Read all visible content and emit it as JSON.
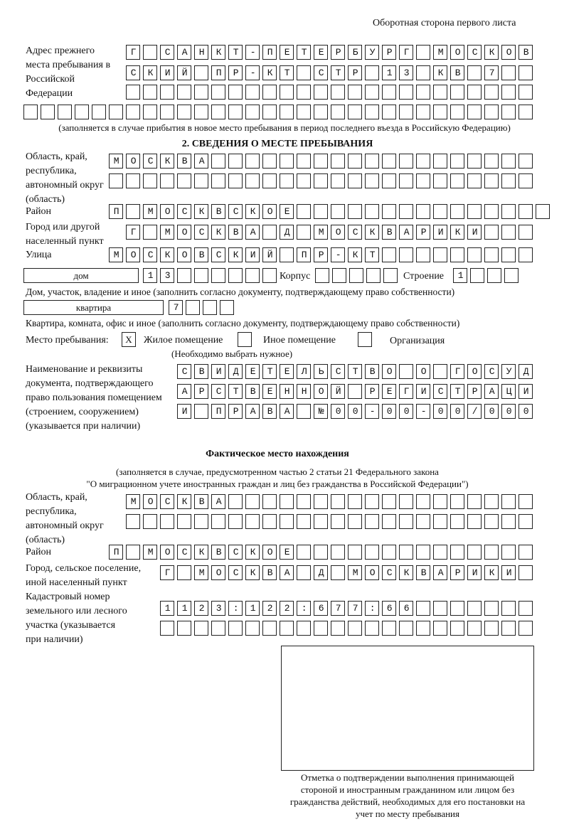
{
  "header": "Оборотная сторона первого листа",
  "prev_address": {
    "label": "Адрес прежнего места пребывания в Российской Федерации",
    "rows": [
      "Г САНКТ-ПЕТЕРБУРГ МОСКОВ",
      "СКИЙ ПР-КТ СТР 13 КВ 7  ",
      "                        ",
      "                              "
    ],
    "note": "(заполняется в случае прибытия в новое место пребывания в период последнего въезда в Российскую Федерацию)"
  },
  "section2": {
    "title": "2. СВЕДЕНИЯ О МЕСТЕ ПРЕБЫВАНИЯ",
    "region_label": "Область, край, республика, автономный округ (область)",
    "region_rows": [
      "МОСКВА                   ",
      "                         "
    ],
    "district_label": "Район",
    "district_row": "П МОСКВСКОЕ               ",
    "city_label": "Город или другой населенный пункт",
    "city_row": "Г МОСКВА Д МОСКВАРИКИ   ",
    "street_label": "Улица",
    "street_row": "МОСКОВСКИЙ ПР-КТ         ",
    "house_type": "дом",
    "house_row": "13      ",
    "korpus_label": "Корпус",
    "korpus_row": "     ",
    "building_label": "Строение",
    "building_row": "1   ",
    "house_note": "Дом, участок, владение и иное (заполнить согласно документу, подтверждающему право собственности)",
    "flat_type": "квартира",
    "flat_row": "7   ",
    "flat_note": "Квартира, комната, офис и иное (заполнить согласно документу, подтверждающему право собственности)",
    "stay_label": "Место пребывания:",
    "stay_options": [
      {
        "label": "Жилое помещение",
        "mark": "X"
      },
      {
        "label": "Иное помещение",
        "mark": ""
      },
      {
        "label": "Организация",
        "mark": ""
      }
    ],
    "stay_note": "(Необходимо выбрать нужное)",
    "doc_label": "Наименование и реквизиты документа, подтверждающего право пользования помещением (строением, сооружением) (указывается при наличии)",
    "doc_rows": [
      "СВИДЕТЕЛЬСТВО О ГОСУД",
      "АРСТВЕННОЙ РЕГИСТРАЦИ",
      "И ПРАВА №00-00-00/000"
    ]
  },
  "actual": {
    "title": "Фактическое место нахождения",
    "note1": "(заполняется в случае, предусмотренном частью 2 статьи 21 Федерального закона",
    "note2": "\"О миграционном учете иностранных граждан и лиц без гражданства в Российской Федерации\")",
    "region_label": "Область, край, республика, автономный округ (область)",
    "region_rows": [
      "МОСКВА                  ",
      "                        "
    ],
    "district_label": "Район",
    "district_row": "П МОСКВСКОЕ              ",
    "city_label": "Город, сельское поселение, иной населенный пункт",
    "city_row": "Г МОСКВА Д МОСКВАРИКИ ",
    "cadastral_label": "Кадастровый номер земельного или лесного участка (указывается при наличии)",
    "cadastral_rows": [
      "1123:122:677:66       ",
      "                      "
    ]
  },
  "stamp_caption": "Отметка о подтверждении выполнения принимающей стороной и иностранным гражданином или лицом без гражданства действий, необходимых для его постановки на учет по месту пребывания"
}
